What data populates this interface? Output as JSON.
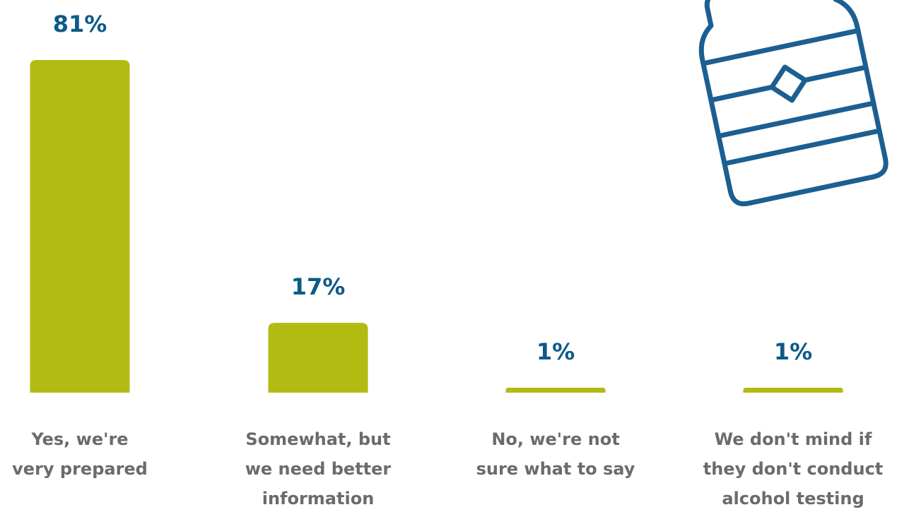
{
  "chart_data": {
    "type": "bar",
    "categories": [
      [
        "Yes, we're",
        "very prepared"
      ],
      [
        "Somewhat, but",
        "we need better",
        "information"
      ],
      [
        "No, we're not",
        "sure what to say"
      ],
      [
        "We don't mind if",
        "they don't conduct",
        "alcohol testing"
      ]
    ],
    "values": [
      81,
      17,
      1,
      1
    ],
    "value_labels": [
      "81%",
      "17%",
      "1%",
      "1%"
    ],
    "ylim": [
      0,
      81
    ],
    "grid": false,
    "legend": "none"
  },
  "colors": {
    "bar": "#b2bb12",
    "value_text": "#0d5a8a",
    "category_text": "#6b6b6b",
    "icon_stroke": "#1c5f91"
  },
  "decoration": {
    "icon": "water-bottle-icon"
  }
}
